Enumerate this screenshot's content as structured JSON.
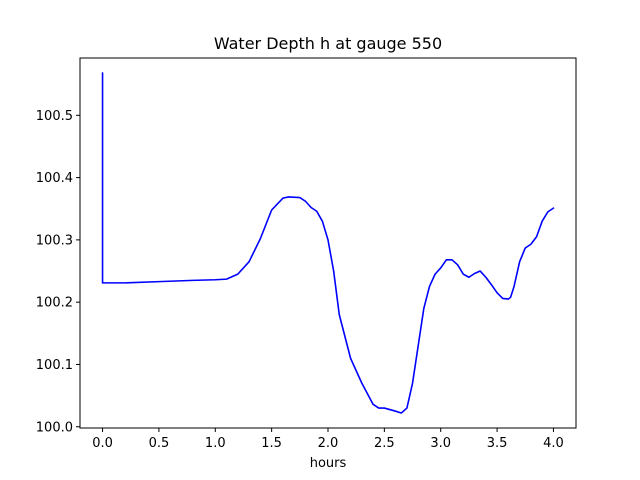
{
  "chart_data": {
    "type": "line",
    "title": "Water Depth h at gauge 550",
    "xlabel": "hours",
    "ylabel": "",
    "xlim": [
      -0.2,
      4.2
    ],
    "ylim": [
      99.998,
      100.592
    ],
    "xticks": [
      0.0,
      0.5,
      1.0,
      1.5,
      2.0,
      2.5,
      3.0,
      3.5,
      4.0
    ],
    "xtick_labels": [
      "0.0",
      "0.5",
      "1.0",
      "1.5",
      "2.0",
      "2.5",
      "3.0",
      "3.5",
      "4.0"
    ],
    "yticks": [
      100.0,
      100.1,
      100.2,
      100.3,
      100.4,
      100.5
    ],
    "ytick_labels": [
      "100.0",
      "100.1",
      "100.2",
      "100.3",
      "100.4",
      "100.5"
    ],
    "grid": false,
    "series": [
      {
        "color": "#0000ff",
        "x": [
          0.0,
          0.0,
          0.0,
          0.2,
          0.5,
          0.8,
          1.0,
          1.1,
          1.2,
          1.3,
          1.4,
          1.5,
          1.6,
          1.65,
          1.75,
          1.8,
          1.85,
          1.9,
          1.95,
          2.0,
          2.05,
          2.1,
          2.2,
          2.3,
          2.4,
          2.45,
          2.5,
          2.6,
          2.65,
          2.7,
          2.75,
          2.8,
          2.85,
          2.9,
          2.95,
          3.0,
          3.05,
          3.1,
          3.15,
          3.2,
          3.25,
          3.3,
          3.35,
          3.4,
          3.45,
          3.5,
          3.55,
          3.6,
          3.62,
          3.65,
          3.7,
          3.75,
          3.8,
          3.85,
          3.9,
          3.95,
          4.0
        ],
        "y": [
          100.568,
          100.231,
          100.231,
          100.231,
          100.233,
          100.235,
          100.236,
          100.237,
          100.245,
          100.265,
          100.302,
          100.348,
          100.367,
          100.369,
          100.368,
          100.362,
          100.352,
          100.346,
          100.33,
          100.3,
          100.25,
          100.18,
          100.11,
          100.07,
          100.036,
          100.03,
          100.03,
          100.025,
          100.022,
          100.03,
          100.07,
          100.13,
          100.19,
          100.225,
          100.245,
          100.255,
          100.268,
          100.268,
          100.26,
          100.245,
          100.24,
          100.246,
          100.25,
          100.24,
          100.228,
          100.215,
          100.206,
          100.205,
          100.208,
          100.225,
          100.265,
          100.287,
          100.293,
          100.305,
          100.33,
          100.345,
          100.351
        ]
      }
    ]
  }
}
